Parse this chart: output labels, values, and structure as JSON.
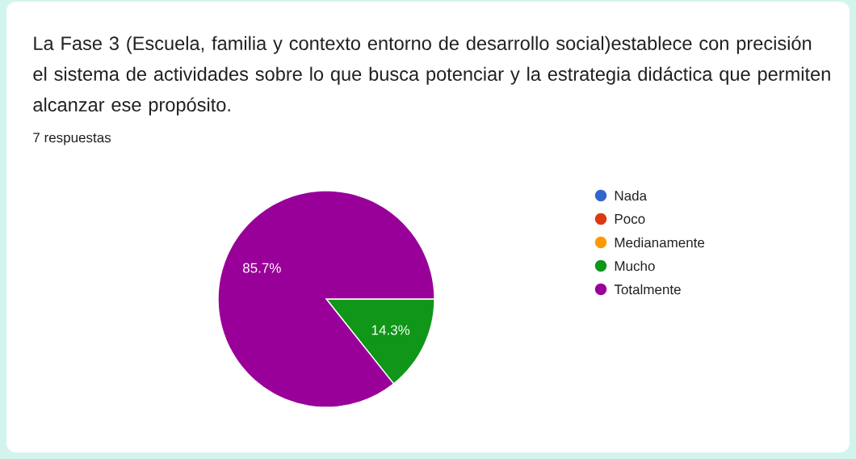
{
  "chart_data": {
    "type": "pie",
    "title": "La Fase 3 (Escuela, familia y contexto entorno de desarrollo social)establece con precisión el sistema de actividades sobre lo que busca potenciar y la estrategia didáctica que permiten alcanzar ese propósito.",
    "subtitle": "7 respuestas",
    "categories": [
      "Nada",
      "Poco",
      "Medianamente",
      "Mucho",
      "Totalmente"
    ],
    "values": [
      0,
      0,
      0,
      14.3,
      85.7
    ],
    "colors": [
      "#3366cc",
      "#dc3912",
      "#ff9900",
      "#109618",
      "#990099"
    ],
    "value_labels": [
      null,
      null,
      null,
      "14.3%",
      "85.7%"
    ],
    "legend": "right"
  }
}
